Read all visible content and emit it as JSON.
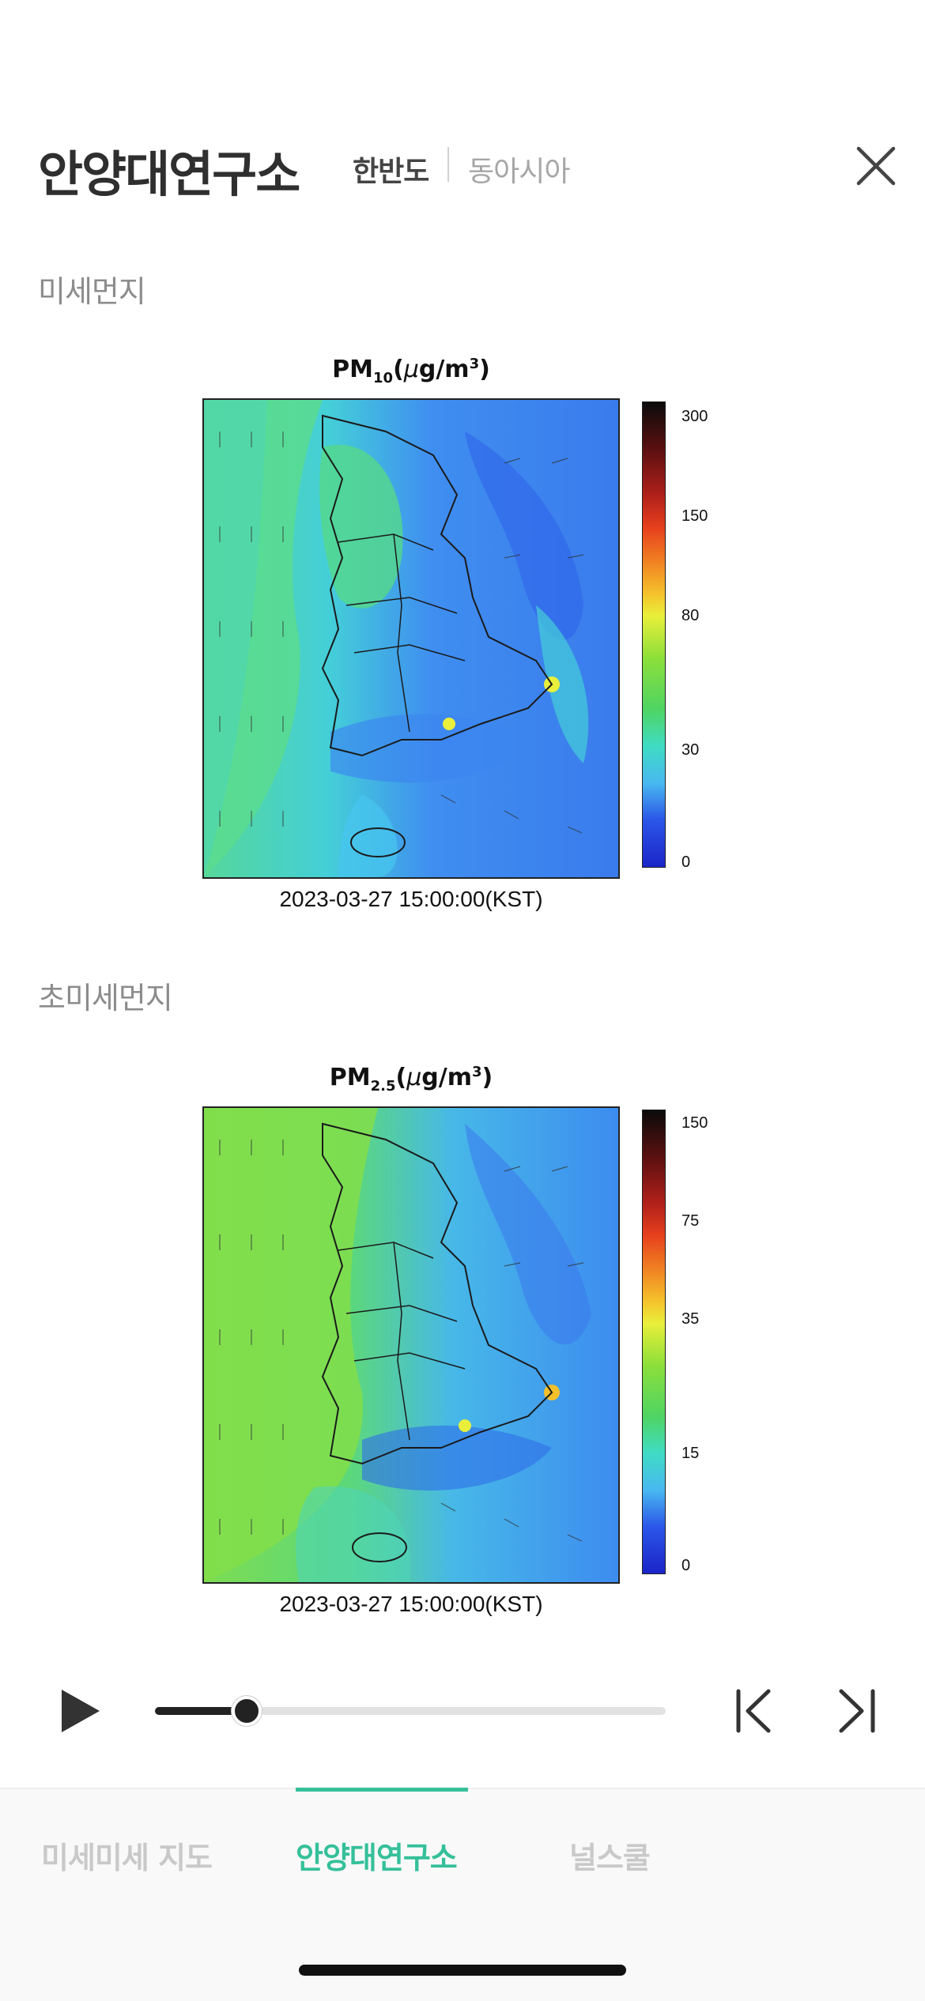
{
  "header": {
    "title": "안양대연구소",
    "segments": [
      "한반도",
      "동아시아"
    ],
    "active_segment": "한반도"
  },
  "sections": [
    {
      "label": "미세먼지",
      "figure": {
        "title_main": "PM",
        "title_sub": "10",
        "title_unit_open": "(",
        "title_mu": "μ",
        "title_unit": "g/m",
        "title_sup": "3",
        "title_close": ")",
        "timestamp": "2023-03-27 15:00:00(KST)",
        "colorbar_ticks": [
          "300",
          "150",
          "80",
          "30",
          "0"
        ]
      }
    },
    {
      "label": "초미세먼지",
      "figure": {
        "title_main": "PM",
        "title_sub": "2.5",
        "title_unit_open": "(",
        "title_mu": "μ",
        "title_unit": "g/m",
        "title_sup": "3",
        "title_close": ")",
        "timestamp": "2023-03-27 15:00:00(KST)",
        "colorbar_ticks": [
          "150",
          "75",
          "35",
          "15",
          "0"
        ]
      }
    }
  ],
  "player": {
    "progress": 0.18,
    "play_icon": "play-icon",
    "prev_icon": "skip-to-start-icon",
    "next_icon": "skip-to-end-icon"
  },
  "tabs": [
    {
      "label": "미세미세 지도",
      "active": false
    },
    {
      "label": "안양대연구소",
      "active": true
    },
    {
      "label": "널스쿨",
      "active": false
    }
  ],
  "colors": {
    "accent": "#35c09a",
    "colorbar": [
      "#0b0b0b",
      "#5a1010",
      "#b0201a",
      "#e6401d",
      "#f07f22",
      "#f5c02b",
      "#e9ef3a",
      "#8ddf3a",
      "#4fd463",
      "#3fdcc4",
      "#48b8f0",
      "#3c86ef",
      "#2b55e8",
      "#1b25c8"
    ]
  }
}
